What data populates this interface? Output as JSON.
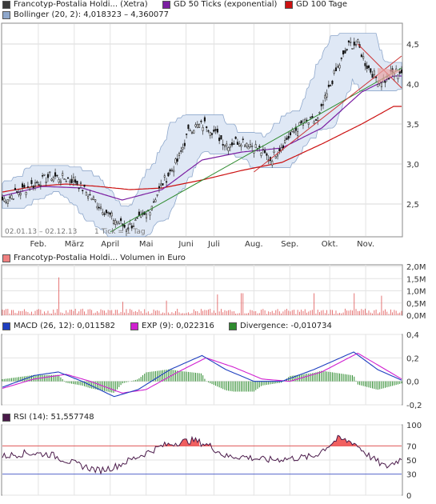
{
  "chart_data": [
    {
      "type": "candlestick",
      "legend": [
        {
          "label": "Francotyp-Postalia Holdi... (Xetra)",
          "color": "#3a3a3a"
        },
        {
          "label": "GD 50 Ticks (exponential)",
          "color": "#7b1fa2"
        },
        {
          "label": "GD 100 Tage",
          "color": "#cc1111"
        },
        {
          "label": "Bollinger (20, 2): 4,018323 – 4,360077",
          "color": "#8fa8cc"
        }
      ],
      "x_tick_labels": [
        "Feb.",
        "März",
        "April",
        "Mai",
        "Juni",
        "Juli",
        "Aug.",
        "Sep.",
        "Okt.",
        "Nov."
      ],
      "y_tick_labels": [
        "2,5",
        "3,0",
        "3,5",
        "4,0",
        "4,5"
      ],
      "ylim": [
        2.1,
        4.75
      ],
      "date_range_label": "02.01.13 – 02.12.13",
      "tick_label": "1 Tick = 1 Tag",
      "close_anchors": [
        [
          0,
          2.55
        ],
        [
          12,
          2.85
        ],
        [
          18,
          2.8
        ],
        [
          22,
          2.6
        ],
        [
          27,
          2.35
        ],
        [
          31,
          2.2
        ],
        [
          36,
          2.35
        ],
        [
          40,
          2.75
        ],
        [
          44,
          3.05
        ],
        [
          47,
          3.45
        ],
        [
          51,
          3.5
        ],
        [
          54,
          3.35
        ],
        [
          56,
          3.25
        ],
        [
          60,
          3.3
        ],
        [
          64,
          3.2
        ],
        [
          67,
          3.05
        ],
        [
          71,
          3.3
        ],
        [
          75,
          3.5
        ],
        [
          79,
          3.55
        ],
        [
          83,
          4.1
        ],
        [
          87,
          4.5
        ],
        [
          89,
          4.5
        ],
        [
          91,
          4.25
        ],
        [
          94,
          4.05
        ],
        [
          96,
          4.05
        ],
        [
          98,
          4.15
        ]
      ],
      "ema50_anchors": [
        [
          0,
          2.6
        ],
        [
          10,
          2.72
        ],
        [
          20,
          2.7
        ],
        [
          30,
          2.55
        ],
        [
          40,
          2.68
        ],
        [
          50,
          3.05
        ],
        [
          60,
          3.15
        ],
        [
          70,
          3.2
        ],
        [
          80,
          3.45
        ],
        [
          90,
          3.9
        ],
        [
          98,
          4.1
        ]
      ],
      "ma100_anchors": [
        [
          0,
          2.65
        ],
        [
          8,
          2.72
        ],
        [
          16,
          2.75
        ],
        [
          24,
          2.72
        ],
        [
          32,
          2.68
        ],
        [
          40,
          2.7
        ],
        [
          50,
          2.8
        ],
        [
          60,
          2.92
        ],
        [
          70,
          3.02
        ],
        [
          80,
          3.25
        ],
        [
          90,
          3.5
        ],
        [
          98,
          3.72
        ]
      ],
      "trend_green": [
        [
          27,
          2.15
        ],
        [
          100,
          4.2
        ]
      ],
      "trend_red_upper": [
        [
          63,
          2.9
        ],
        [
          100,
          4.35
        ]
      ],
      "trend_red_lower": [
        [
          89,
          4.5
        ],
        [
          100,
          3.95
        ]
      ]
    },
    {
      "type": "bar",
      "legend": [
        {
          "label": "Francotyp-Postalia Holdi... Volumen in Euro",
          "color": "#f08080"
        }
      ],
      "y_tick_labels": [
        "0,0M",
        "0,5M",
        "1,0M",
        "1,5M",
        "2,0M"
      ],
      "ylim": [
        0,
        2.0
      ],
      "unit": "M",
      "spikes": [
        [
          14,
          1.55
        ],
        [
          30,
          0.55
        ],
        [
          41,
          0.6
        ],
        [
          54,
          0.85
        ],
        [
          60,
          0.9
        ],
        [
          78,
          0.9
        ],
        [
          88,
          0.9
        ],
        [
          95,
          0.8
        ]
      ]
    },
    {
      "type": "line",
      "legend": [
        {
          "label": "MACD (26, 12): 0,011582",
          "color": "#1f3fc0"
        },
        {
          "label": "EXP (9): 0,022316",
          "color": "#d020d0"
        },
        {
          "label": "Divergence: -0,010734",
          "color": "#2e8b2e"
        }
      ],
      "y_tick_labels": [
        "-0,2",
        "0,0",
        "0,2",
        "0,4"
      ],
      "ylim": [
        -0.2,
        0.4
      ],
      "macd_anchors": [
        [
          0,
          -0.05
        ],
        [
          8,
          0.05
        ],
        [
          14,
          0.08
        ],
        [
          20,
          0.0
        ],
        [
          28,
          -0.13
        ],
        [
          34,
          -0.07
        ],
        [
          42,
          0.1
        ],
        [
          50,
          0.22
        ],
        [
          56,
          0.1
        ],
        [
          63,
          0.0
        ],
        [
          70,
          0.0
        ],
        [
          78,
          0.1
        ],
        [
          88,
          0.25
        ],
        [
          94,
          0.1
        ],
        [
          100,
          0.01
        ]
      ],
      "signal_anchors": [
        [
          0,
          -0.06
        ],
        [
          8,
          0.02
        ],
        [
          16,
          0.06
        ],
        [
          22,
          0.0
        ],
        [
          30,
          -0.1
        ],
        [
          36,
          -0.07
        ],
        [
          44,
          0.08
        ],
        [
          51,
          0.2
        ],
        [
          58,
          0.12
        ],
        [
          65,
          0.02
        ],
        [
          72,
          0.0
        ],
        [
          80,
          0.08
        ],
        [
          89,
          0.24
        ],
        [
          95,
          0.12
        ],
        [
          100,
          0.02
        ]
      ]
    },
    {
      "type": "line",
      "legend": [
        {
          "label": "RSI (14): 51,557748",
          "color": "#4a1a4a"
        }
      ],
      "y_tick_labels": [
        "0",
        "30",
        "50",
        "70",
        "100"
      ],
      "ylim": [
        0,
        100
      ],
      "reference_lines": [
        30,
        70
      ],
      "rsi_anchors": [
        [
          0,
          55
        ],
        [
          6,
          60
        ],
        [
          12,
          58
        ],
        [
          18,
          45
        ],
        [
          24,
          35
        ],
        [
          28,
          40
        ],
        [
          34,
          55
        ],
        [
          40,
          70
        ],
        [
          44,
          75
        ],
        [
          48,
          78
        ],
        [
          52,
          70
        ],
        [
          56,
          55
        ],
        [
          60,
          55
        ],
        [
          66,
          50
        ],
        [
          72,
          52
        ],
        [
          78,
          55
        ],
        [
          84,
          80
        ],
        [
          88,
          75
        ],
        [
          92,
          55
        ],
        [
          96,
          40
        ],
        [
          100,
          52
        ]
      ]
    }
  ]
}
